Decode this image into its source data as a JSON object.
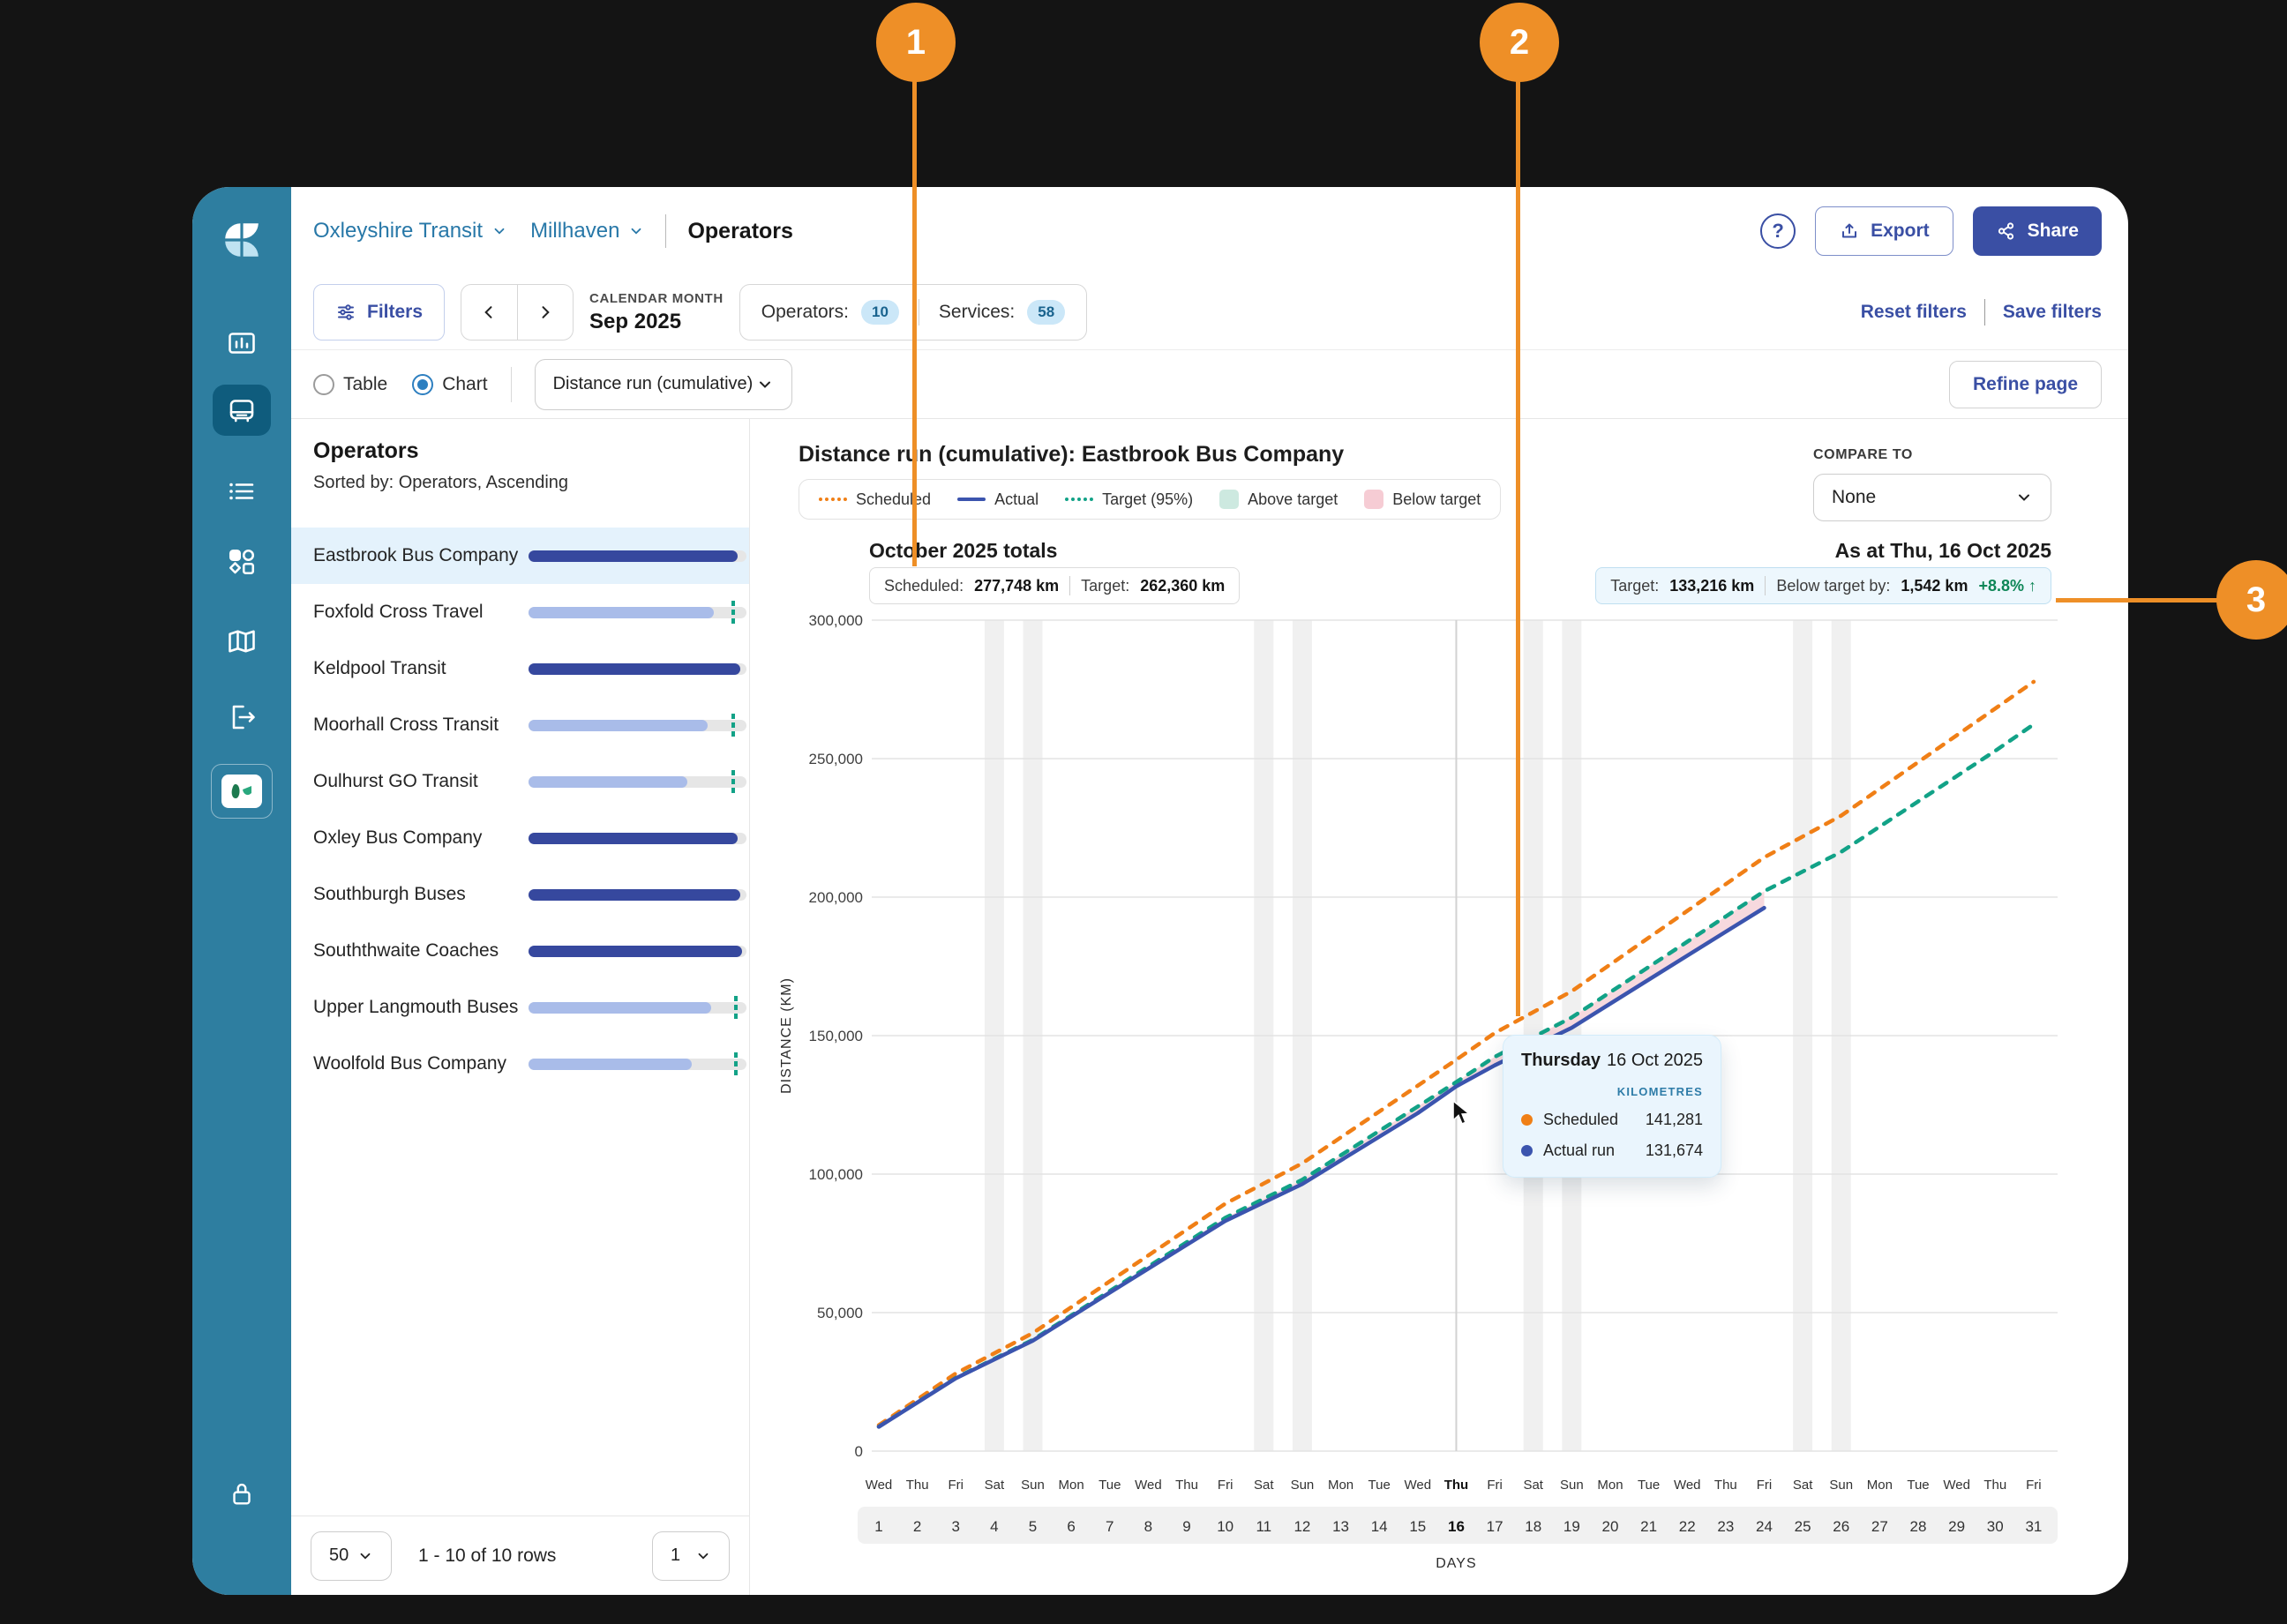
{
  "annotations": {
    "badge1": "1",
    "badge2": "2",
    "badge3": "3"
  },
  "sidebar": {
    "icons": [
      "logo",
      "bar-chart",
      "bus",
      "list",
      "apps",
      "map",
      "logout",
      "partner-badge",
      "lock"
    ],
    "active": "bus"
  },
  "header": {
    "breadcrumb_org": "Oxleyshire Transit",
    "breadcrumb_region": "Millhaven",
    "page_title": "Operators",
    "export_label": "Export",
    "share_label": "Share",
    "help_glyph": "?"
  },
  "filters": {
    "filters_label": "Filters",
    "calendar_label": "CALENDAR MONTH",
    "calendar_value": "Sep 2025",
    "operators_label": "Operators:",
    "operators_count": "10",
    "services_label": "Services:",
    "services_count": "58",
    "reset_label": "Reset filters",
    "save_label": "Save filters"
  },
  "view_toggle": {
    "table_label": "Table",
    "chart_label": "Chart",
    "metric_value": "Distance run (cumulative)",
    "refine_label": "Refine page"
  },
  "operators_panel": {
    "title": "Operators",
    "sorted_by": "Sorted by: Operators, Ascending",
    "rows": [
      {
        "name": "Eastbrook Bus Company",
        "pct": 96,
        "variant": "dark",
        "target": null,
        "selected": true
      },
      {
        "name": "Foxfold Cross Travel",
        "pct": 85,
        "variant": "light",
        "target": 94,
        "selected": false
      },
      {
        "name": "Keldpool Transit",
        "pct": 97,
        "variant": "dark",
        "target": null,
        "selected": false
      },
      {
        "name": "Moorhall Cross Transit",
        "pct": 82,
        "variant": "light",
        "target": 94,
        "selected": false
      },
      {
        "name": "Oulhurst GO Transit",
        "pct": 73,
        "variant": "light",
        "target": 94,
        "selected": false
      },
      {
        "name": "Oxley Bus Company",
        "pct": 96,
        "variant": "dark",
        "target": null,
        "selected": false
      },
      {
        "name": "Southburgh Buses",
        "pct": 97,
        "variant": "dark",
        "target": null,
        "selected": false
      },
      {
        "name": "Souththwaite Coaches",
        "pct": 98,
        "variant": "dark",
        "target": null,
        "selected": false
      },
      {
        "name": "Upper Langmouth Buses",
        "pct": 84,
        "variant": "light",
        "target": 95,
        "selected": false
      },
      {
        "name": "Woolfold Bus Company",
        "pct": 75,
        "variant": "light",
        "target": 95,
        "selected": false
      }
    ],
    "pagination": {
      "page_size": "50",
      "range_text": "1 - 10 of 10 rows",
      "page": "1"
    }
  },
  "chart": {
    "title": "Distance run (cumulative): Eastbrook Bus Company",
    "legend": [
      {
        "label": "Scheduled",
        "style": "dotted",
        "color": "#f07f16"
      },
      {
        "label": "Actual",
        "style": "solid",
        "color": "#3b54ae"
      },
      {
        "label": "Target (95%)",
        "style": "dotted",
        "color": "#12a287"
      },
      {
        "label": "Above target",
        "style": "swatch",
        "color": "#cde9e0"
      },
      {
        "label": "Below target",
        "style": "swatch",
        "color": "#f6ccd4"
      }
    ],
    "compare_label": "COMPARE TO",
    "compare_value": "None",
    "totals_heading": "October 2025 totals",
    "totals_scheduled_label": "Scheduled:",
    "totals_scheduled_value": "277,748 km",
    "totals_target_label": "Target:",
    "totals_target_value": "262,360 km",
    "asat_heading": "As at Thu, 16 Oct 2025",
    "asat_target_label": "Target:",
    "asat_target_value": "133,216 km",
    "asat_below_label": "Below target by:",
    "asat_below_value": "1,542 km",
    "asat_delta": "+8.8% ↑",
    "tooltip": {
      "day_name": "Thursday",
      "date": "16 Oct 2025",
      "unit_label": "KILOMETRES",
      "rows": [
        {
          "label": "Scheduled",
          "value": "141,281",
          "color": "#f07f16"
        },
        {
          "label": "Actual run",
          "value": "131,674",
          "color": "#3b54ae"
        }
      ]
    }
  },
  "chart_data": {
    "type": "line",
    "title": "Distance run (cumulative): Eastbrook Bus Company",
    "xlabel": "DAYS",
    "ylabel": "DISTANCE (KM)",
    "ylim": [
      0,
      300000
    ],
    "yticks": [
      0,
      50000,
      100000,
      150000,
      200000,
      250000,
      300000
    ],
    "ytick_labels": [
      "0",
      "50,000",
      "100,000",
      "150,000",
      "200,000",
      "250,000",
      "300,000"
    ],
    "x": [
      1,
      2,
      3,
      4,
      5,
      6,
      7,
      8,
      9,
      10,
      11,
      12,
      13,
      14,
      15,
      16,
      17,
      18,
      19,
      20,
      21,
      22,
      23,
      24,
      25,
      26,
      27,
      28,
      29,
      30,
      31
    ],
    "dow": [
      "Wed",
      "Thu",
      "Fri",
      "Sat",
      "Sun",
      "Mon",
      "Tue",
      "Wed",
      "Thu",
      "Fri",
      "Sat",
      "Sun",
      "Mon",
      "Tue",
      "Wed",
      "Thu",
      "Fri",
      "Sat",
      "Sun",
      "Mon",
      "Tue",
      "Wed",
      "Thu",
      "Fri",
      "Sat",
      "Sun",
      "Mon",
      "Tue",
      "Wed",
      "Thu",
      "Fri"
    ],
    "weekend_days": [
      4,
      5,
      11,
      12,
      18,
      19,
      25,
      26
    ],
    "highlight_day": 16,
    "grid": true,
    "legend_position": "top-left",
    "series": [
      {
        "name": "Scheduled",
        "style": "dashed",
        "color": "#f07f16",
        "values": [
          9343,
          18686,
          28029,
          35317,
          42605,
          51948,
          61291,
          70634,
          79977,
          89320,
          96608,
          103896,
          113239,
          122582,
          131925,
          141281,
          150945,
          158483,
          166021,
          175685,
          185349,
          195013,
          204677,
          214341,
          221879,
          229417,
          239081,
          248745,
          258409,
          268073,
          277748
        ]
      },
      {
        "name": "Target (95%)",
        "style": "dashed",
        "color": "#12a287",
        "values": [
          8810,
          17621,
          26431,
          33304,
          40177,
          48987,
          57797,
          66608,
          75418,
          84229,
          91101,
          97974,
          106784,
          115595,
          124405,
          133216,
          142341,
          149449,
          156558,
          165671,
          174784,
          183897,
          193010,
          202123,
          209232,
          216340,
          225453,
          234566,
          243679,
          252792,
          262360
        ]
      },
      {
        "name": "Actual",
        "style": "solid",
        "color": "#3b54ae",
        "values": [
          8782,
          17544,
          26286,
          33082,
          39866,
          48549,
          57215,
          65862,
          74483,
          83090,
          89762,
          96421,
          104969,
          113498,
          122012,
          131674,
          139273,
          146058,
          152822,
          161530,
          170213,
          178866,
          187504,
          196122
        ]
      }
    ],
    "below_target_fill": {
      "between": [
        "Target (95%)",
        "Actual"
      ],
      "color": "#f7d9de",
      "to_day": 24
    }
  }
}
